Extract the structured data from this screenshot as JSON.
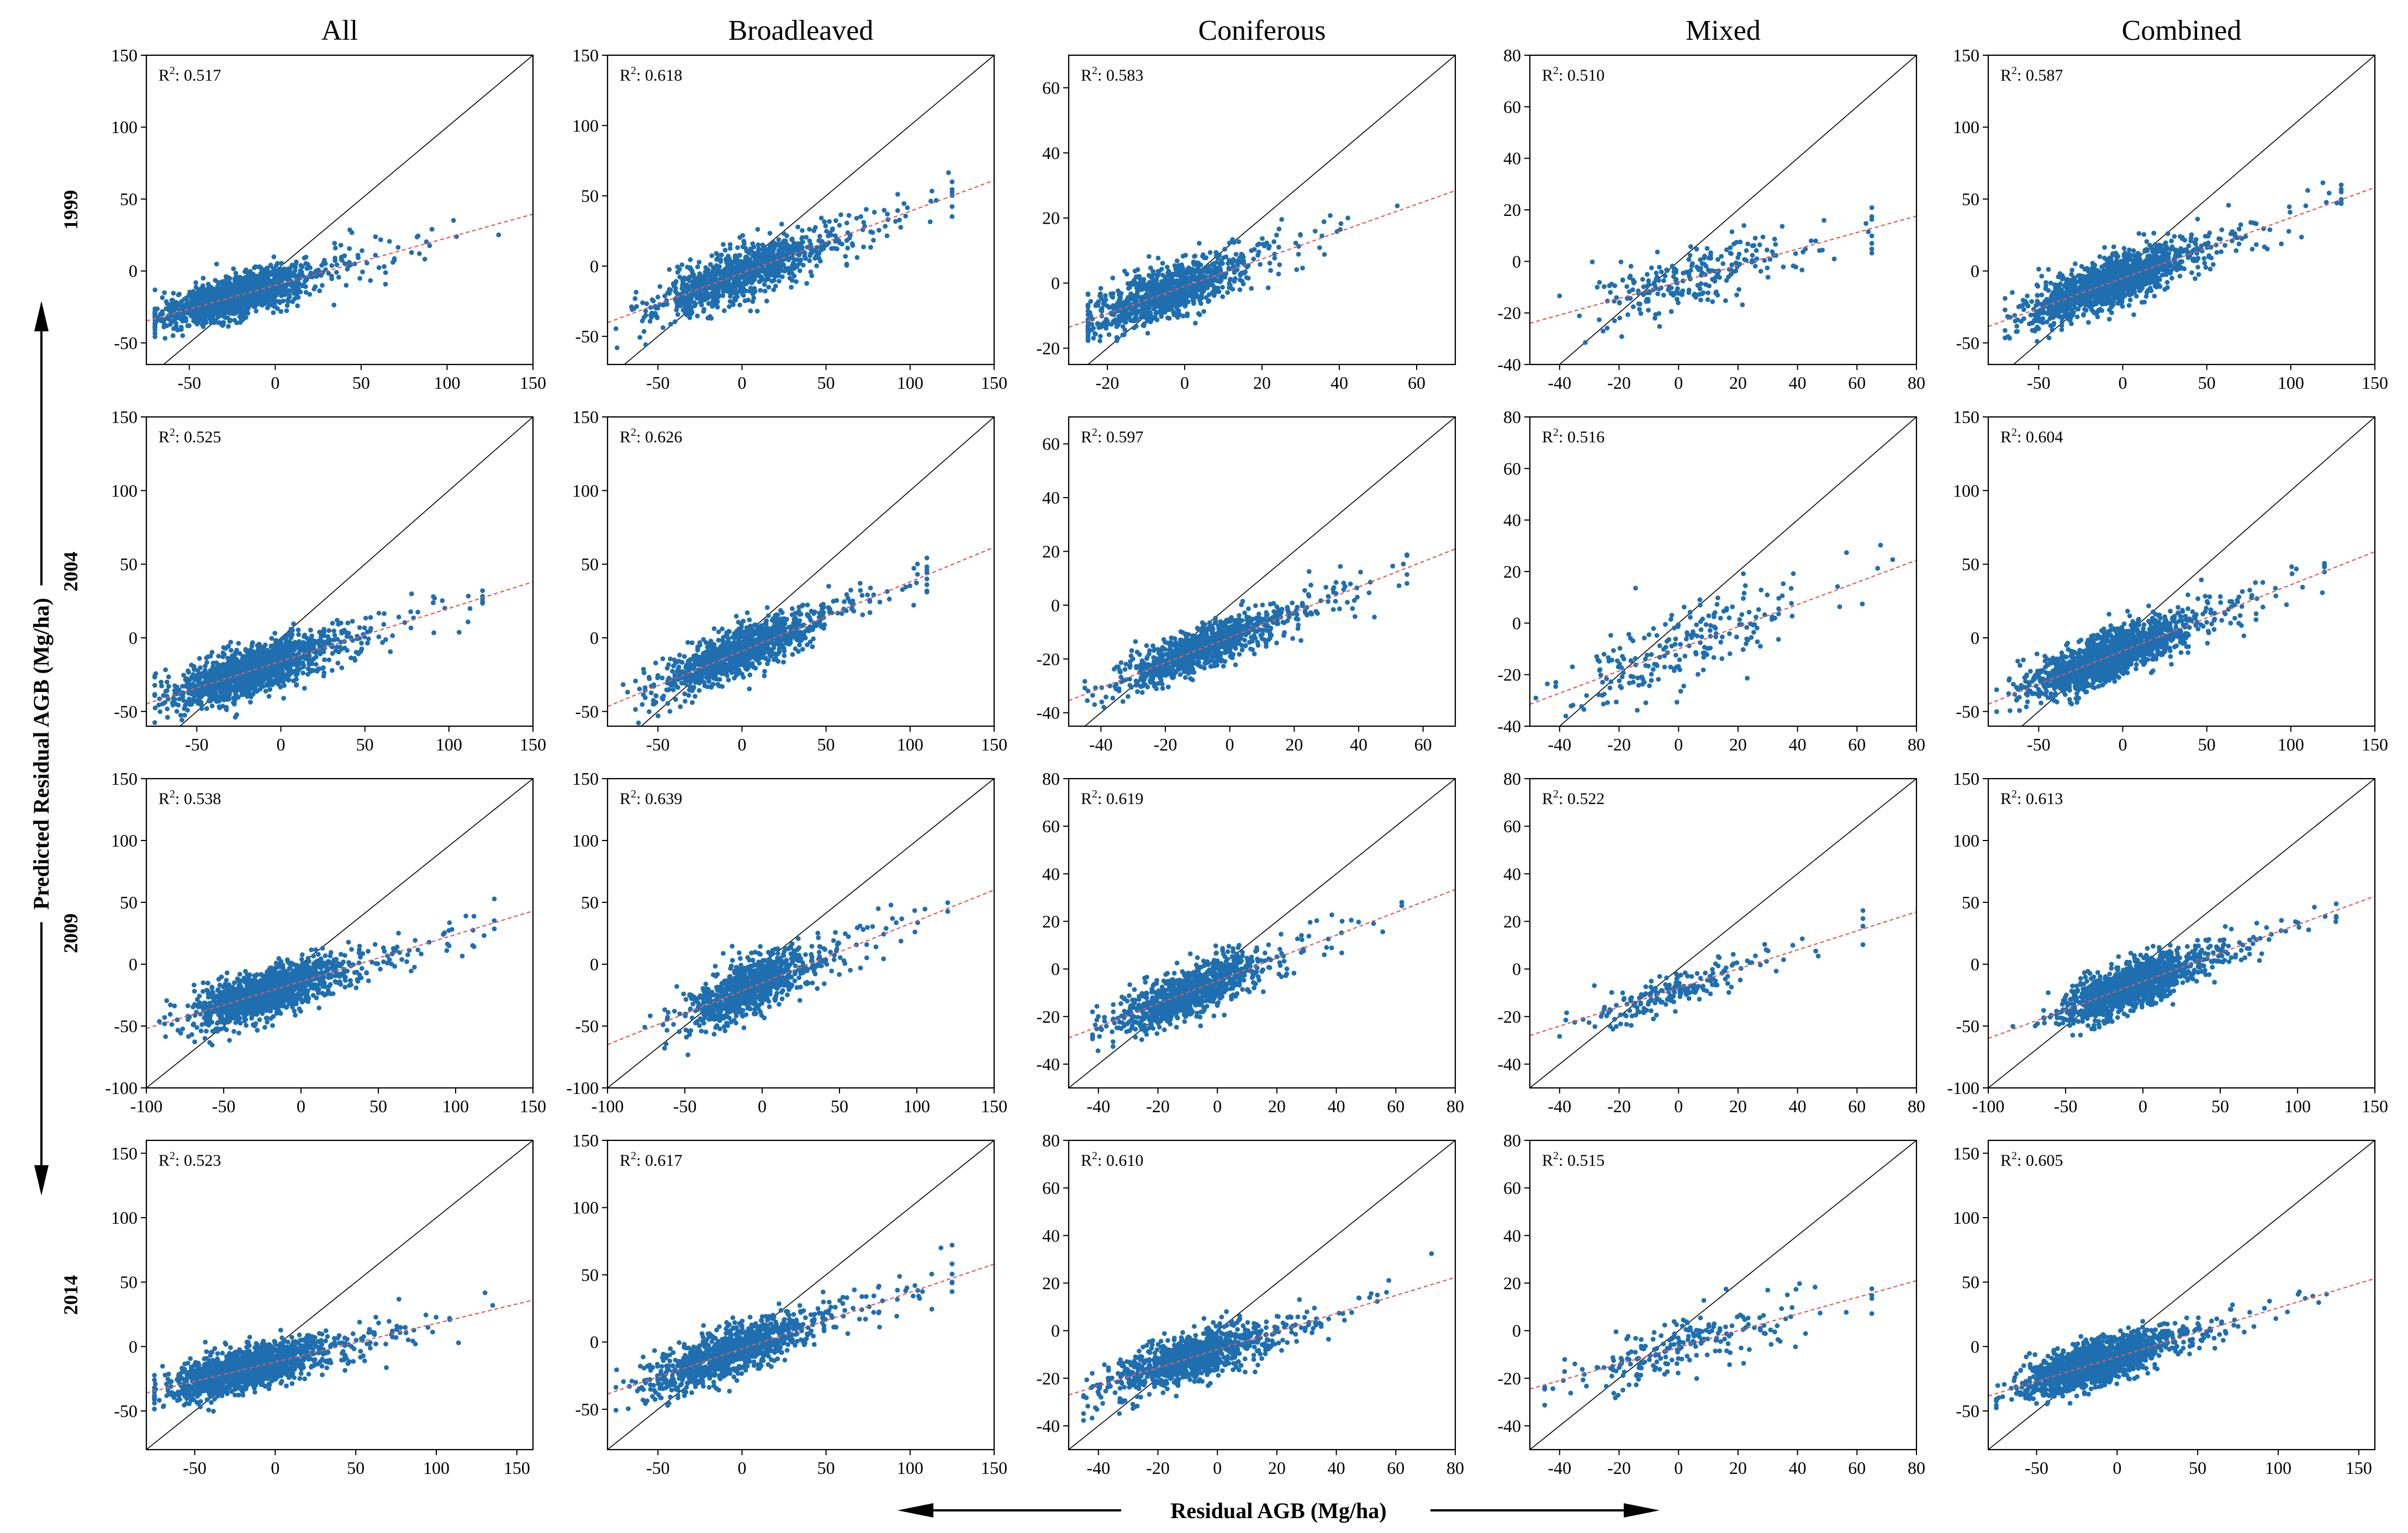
{
  "figure": {
    "columns": [
      "All",
      "Broadleaved",
      "Coniferous",
      "Mixed",
      "Combined"
    ],
    "rows": [
      "1999",
      "2004",
      "2009",
      "2014"
    ],
    "y_axis_title": "Predicted Residual AGB (Mg/ha)",
    "x_axis_title": "Residual AGB (Mg/ha)",
    "r2_prefix": "R",
    "r2_sup": "2",
    "colors": {
      "points": "#1f6fb0",
      "fit_line": "#e05a5a",
      "identity_line": "#000000",
      "frame": "#000000"
    }
  },
  "chart_data": [
    {
      "type": "scatter",
      "row": "1999",
      "column": "All",
      "r2": "0.517",
      "xlim": [
        -75,
        150
      ],
      "ylim": [
        -65,
        150
      ],
      "xticks": [
        -50,
        0,
        50,
        100,
        150
      ],
      "yticks": [
        -50,
        0,
        50,
        100,
        150
      ],
      "n_points": 1600,
      "x_range": [
        -70,
        130
      ],
      "x_center": -25,
      "x_spread": 20,
      "fit": {
        "slope": 0.33,
        "intercept": -10
      },
      "noise": 7
    },
    {
      "type": "scatter",
      "row": "1999",
      "column": "Broadleaved",
      "r2": "0.618",
      "xlim": [
        -80,
        150
      ],
      "ylim": [
        -70,
        150
      ],
      "xticks": [
        -50,
        0,
        50,
        100,
        150
      ],
      "yticks": [
        -50,
        0,
        50,
        100,
        150
      ],
      "n_points": 1100,
      "x_range": [
        -75,
        125
      ],
      "x_center": -5,
      "x_spread": 25,
      "fit": {
        "slope": 0.44,
        "intercept": -5
      },
      "noise": 9
    },
    {
      "type": "scatter",
      "row": "1999",
      "column": "Coniferous",
      "r2": "0.583",
      "xlim": [
        -30,
        70
      ],
      "ylim": [
        -25,
        70
      ],
      "xticks": [
        -20,
        0,
        20,
        40,
        60
      ],
      "yticks": [
        -20,
        0,
        20,
        40,
        60
      ],
      "n_points": 1000,
      "x_range": [
        -25,
        55
      ],
      "x_center": -5,
      "x_spread": 10,
      "fit": {
        "slope": 0.42,
        "intercept": -1
      },
      "noise": 4
    },
    {
      "type": "scatter",
      "row": "1999",
      "column": "Mixed",
      "r2": "0.510",
      "xlim": [
        -50,
        80
      ],
      "ylim": [
        -40,
        80
      ],
      "xticks": [
        -40,
        -20,
        0,
        20,
        40,
        60,
        80
      ],
      "yticks": [
        -40,
        -20,
        0,
        20,
        40,
        60,
        80
      ],
      "n_points": 260,
      "x_range": [
        -40,
        65
      ],
      "x_center": 5,
      "x_spread": 18,
      "fit": {
        "slope": 0.32,
        "intercept": -8
      },
      "noise": 6
    },
    {
      "type": "scatter",
      "row": "1999",
      "column": "Combined",
      "r2": "0.587",
      "xlim": [
        -80,
        150
      ],
      "ylim": [
        -65,
        150
      ],
      "xticks": [
        -50,
        0,
        50,
        100,
        150
      ],
      "yticks": [
        -50,
        0,
        50,
        100,
        150
      ],
      "n_points": 1600,
      "x_range": [
        -70,
        130
      ],
      "x_center": -10,
      "x_spread": 22,
      "fit": {
        "slope": 0.42,
        "intercept": -5
      },
      "noise": 8
    },
    {
      "type": "scatter",
      "row": "2004",
      "column": "All",
      "r2": "0.525",
      "xlim": [
        -80,
        150
      ],
      "ylim": [
        -60,
        150
      ],
      "xticks": [
        -50,
        0,
        50,
        100,
        150
      ],
      "yticks": [
        -50,
        0,
        50,
        100,
        150
      ],
      "n_points": 1600,
      "x_range": [
        -75,
        120
      ],
      "x_center": -20,
      "x_spread": 22,
      "fit": {
        "slope": 0.36,
        "intercept": -16
      },
      "noise": 8
    },
    {
      "type": "scatter",
      "row": "2004",
      "column": "Broadleaved",
      "r2": "0.626",
      "xlim": [
        -80,
        150
      ],
      "ylim": [
        -60,
        150
      ],
      "xticks": [
        -50,
        0,
        50,
        100,
        150
      ],
      "yticks": [
        -50,
        0,
        50,
        100,
        150
      ],
      "n_points": 1100,
      "x_range": [
        -75,
        110
      ],
      "x_center": -5,
      "x_spread": 22,
      "fit": {
        "slope": 0.47,
        "intercept": -9
      },
      "noise": 8
    },
    {
      "type": "scatter",
      "row": "2004",
      "column": "Coniferous",
      "r2": "0.597",
      "xlim": [
        -50,
        70
      ],
      "ylim": [
        -45,
        70
      ],
      "xticks": [
        -40,
        -20,
        0,
        20,
        40,
        60
      ],
      "yticks": [
        -40,
        -20,
        0,
        20,
        40,
        60
      ],
      "n_points": 1000,
      "x_range": [
        -45,
        55
      ],
      "x_center": -10,
      "x_spread": 12,
      "fit": {
        "slope": 0.47,
        "intercept": -12
      },
      "noise": 4
    },
    {
      "type": "scatter",
      "row": "2004",
      "column": "Mixed",
      "r2": "0.516",
      "xlim": [
        -50,
        80
      ],
      "ylim": [
        -40,
        80
      ],
      "xticks": [
        -40,
        -20,
        0,
        20,
        40,
        60,
        80
      ],
      "yticks": [
        -40,
        -20,
        0,
        20,
        40,
        60,
        80
      ],
      "n_points": 220,
      "x_range": [
        -48,
        72
      ],
      "x_center": 0,
      "x_spread": 18,
      "fit": {
        "slope": 0.43,
        "intercept": -10
      },
      "noise": 8
    },
    {
      "type": "scatter",
      "row": "2004",
      "column": "Combined",
      "r2": "0.604",
      "xlim": [
        -80,
        150
      ],
      "ylim": [
        -60,
        150
      ],
      "xticks": [
        -50,
        0,
        50,
        100,
        150
      ],
      "yticks": [
        -50,
        0,
        50,
        100,
        150
      ],
      "n_points": 1600,
      "x_range": [
        -75,
        120
      ],
      "x_center": -10,
      "x_spread": 22,
      "fit": {
        "slope": 0.45,
        "intercept": -9
      },
      "noise": 8
    },
    {
      "type": "scatter",
      "row": "2009",
      "column": "All",
      "r2": "0.538",
      "xlim": [
        -100,
        150
      ],
      "ylim": [
        -100,
        150
      ],
      "xticks": [
        -100,
        -50,
        0,
        50,
        100,
        150
      ],
      "yticks": [
        -100,
        -50,
        0,
        50,
        100,
        150
      ],
      "n_points": 1500,
      "x_range": [
        -95,
        125
      ],
      "x_center": -25,
      "x_spread": 22,
      "fit": {
        "slope": 0.38,
        "intercept": -14
      },
      "noise": 9
    },
    {
      "type": "scatter",
      "row": "2009",
      "column": "Broadleaved",
      "r2": "0.639",
      "xlim": [
        -100,
        150
      ],
      "ylim": [
        -100,
        150
      ],
      "xticks": [
        -100,
        -50,
        0,
        50,
        100,
        150
      ],
      "yticks": [
        -100,
        -50,
        0,
        50,
        100,
        150
      ],
      "n_points": 1000,
      "x_range": [
        -90,
        120
      ],
      "x_center": -10,
      "x_spread": 20,
      "fit": {
        "slope": 0.5,
        "intercept": -15
      },
      "noise": 10
    },
    {
      "type": "scatter",
      "row": "2009",
      "column": "Coniferous",
      "r2": "0.619",
      "xlim": [
        -50,
        80
      ],
      "ylim": [
        -50,
        80
      ],
      "xticks": [
        -40,
        -20,
        0,
        20,
        40,
        60,
        80
      ],
      "yticks": [
        -40,
        -20,
        0,
        20,
        40,
        60,
        80
      ],
      "n_points": 1000,
      "x_range": [
        -42,
        62
      ],
      "x_center": -10,
      "x_spread": 12,
      "fit": {
        "slope": 0.48,
        "intercept": -5
      },
      "noise": 5
    },
    {
      "type": "scatter",
      "row": "2009",
      "column": "Mixed",
      "r2": "0.522",
      "xlim": [
        -50,
        80
      ],
      "ylim": [
        -50,
        80
      ],
      "xticks": [
        -40,
        -20,
        0,
        20,
        40,
        60,
        80
      ],
      "yticks": [
        -40,
        -20,
        0,
        20,
        40,
        60,
        80
      ],
      "n_points": 200,
      "x_range": [
        -40,
        62
      ],
      "x_center": -5,
      "x_spread": 15,
      "fit": {
        "slope": 0.4,
        "intercept": -8
      },
      "noise": 4
    },
    {
      "type": "scatter",
      "row": "2009",
      "column": "Combined",
      "r2": "0.613",
      "xlim": [
        -100,
        150
      ],
      "ylim": [
        -100,
        150
      ],
      "xticks": [
        -100,
        -50,
        0,
        50,
        100,
        150
      ],
      "yticks": [
        -100,
        -50,
        0,
        50,
        100,
        150
      ],
      "n_points": 1500,
      "x_range": [
        -90,
        125
      ],
      "x_center": -10,
      "x_spread": 20,
      "fit": {
        "slope": 0.46,
        "intercept": -14
      },
      "noise": 9
    },
    {
      "type": "scatter",
      "row": "2014",
      "column": "All",
      "r2": "0.523",
      "xlim": [
        -80,
        160
      ],
      "ylim": [
        -80,
        160
      ],
      "xticks": [
        -50,
        0,
        50,
        100,
        150
      ],
      "yticks": [
        -50,
        0,
        50,
        100,
        150
      ],
      "n_points": 1600,
      "x_range": [
        -75,
        135
      ],
      "x_center": -20,
      "x_spread": 22,
      "fit": {
        "slope": 0.3,
        "intercept": -12
      },
      "noise": 8
    },
    {
      "type": "scatter",
      "row": "2014",
      "column": "Broadleaved",
      "r2": "0.617",
      "xlim": [
        -80,
        150
      ],
      "ylim": [
        -80,
        150
      ],
      "xticks": [
        -50,
        0,
        50,
        100,
        150
      ],
      "yticks": [
        -50,
        0,
        50,
        100,
        150
      ],
      "n_points": 1100,
      "x_range": [
        -75,
        125
      ],
      "x_center": -10,
      "x_spread": 24,
      "fit": {
        "slope": 0.42,
        "intercept": -5
      },
      "noise": 9
    },
    {
      "type": "scatter",
      "row": "2014",
      "column": "Coniferous",
      "r2": "0.610",
      "xlim": [
        -50,
        80
      ],
      "ylim": [
        -50,
        80
      ],
      "xticks": [
        -40,
        -20,
        0,
        20,
        40,
        60,
        80
      ],
      "yticks": [
        -40,
        -20,
        0,
        20,
        40,
        60,
        80
      ],
      "n_points": 1000,
      "x_range": [
        -45,
        72
      ],
      "x_center": -10,
      "x_spread": 14,
      "fit": {
        "slope": 0.38,
        "intercept": -8
      },
      "noise": 5
    },
    {
      "type": "scatter",
      "row": "2014",
      "column": "Mixed",
      "r2": "0.515",
      "xlim": [
        -50,
        80
      ],
      "ylim": [
        -50,
        80
      ],
      "xticks": [
        -40,
        -20,
        0,
        20,
        40,
        60,
        80
      ],
      "yticks": [
        -40,
        -20,
        0,
        20,
        40,
        60,
        80
      ],
      "n_points": 220,
      "x_range": [
        -45,
        65
      ],
      "x_center": 0,
      "x_spread": 18,
      "fit": {
        "slope": 0.35,
        "intercept": -7
      },
      "noise": 6
    },
    {
      "type": "scatter",
      "row": "2014",
      "column": "Combined",
      "r2": "0.605",
      "xlim": [
        -80,
        160
      ],
      "ylim": [
        -80,
        160
      ],
      "xticks": [
        -50,
        0,
        50,
        100,
        150
      ],
      "yticks": [
        -50,
        0,
        50,
        100,
        150
      ],
      "n_points": 1600,
      "x_range": [
        -75,
        130
      ],
      "x_center": -15,
      "x_spread": 22,
      "fit": {
        "slope": 0.38,
        "intercept": -8
      },
      "noise": 8
    }
  ]
}
